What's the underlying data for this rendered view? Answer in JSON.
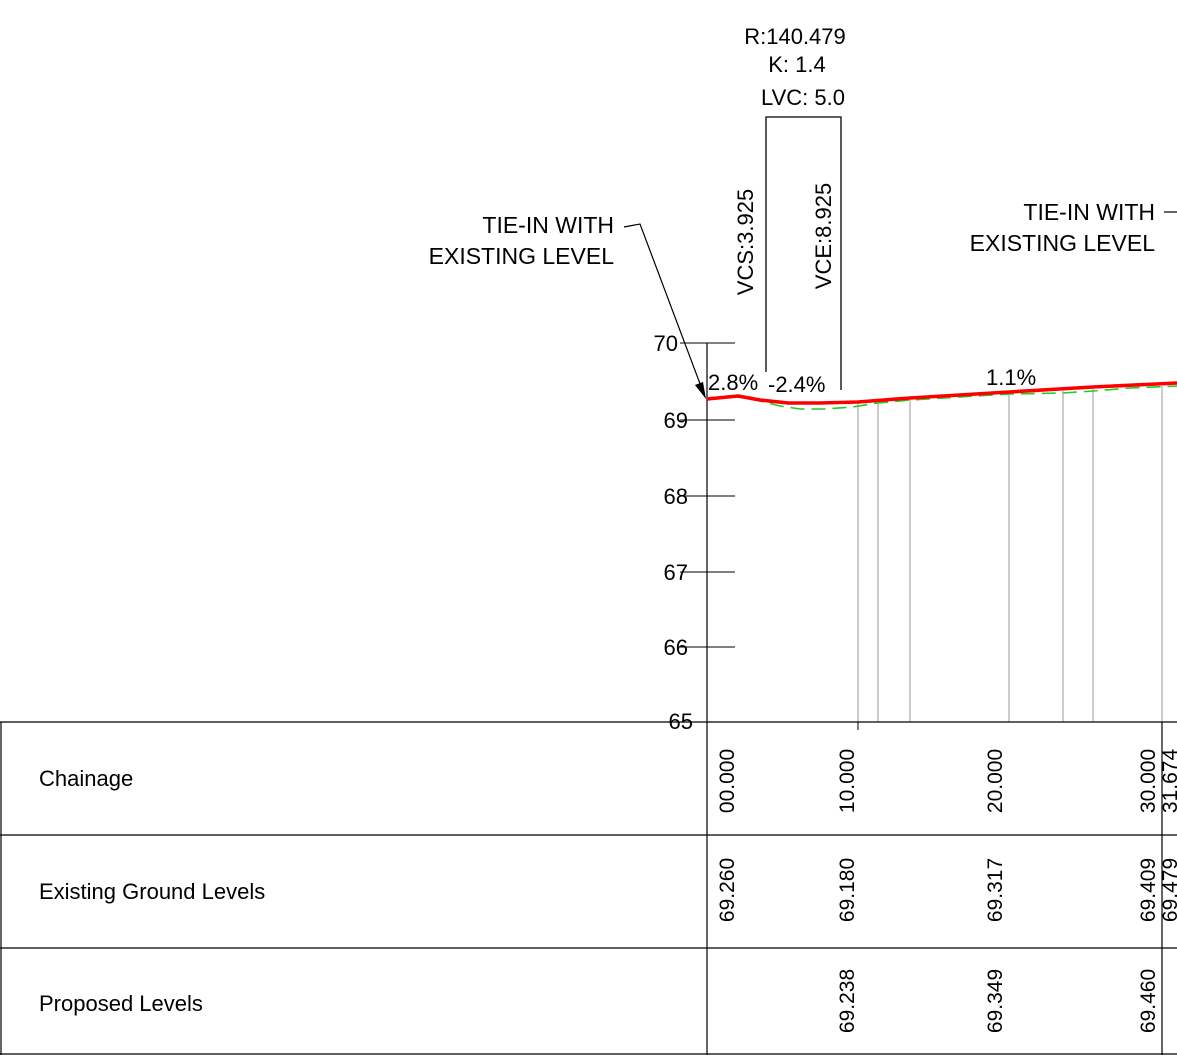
{
  "curve_info": {
    "radius": "R:140.479",
    "k_value": "K: 1.4",
    "lvc": "LVC: 5.0",
    "vcs": "VCS:3.925",
    "vce": "VCE:8.925"
  },
  "notes": {
    "tie_in_left": [
      "TIE-IN WITH",
      "EXISTING LEVEL"
    ],
    "tie_in_right": [
      "TIE-IN WITH",
      "EXISTING LEVEL"
    ]
  },
  "grades": {
    "g1": "2.8%",
    "g2": "-2.4%",
    "g3": "1.1%"
  },
  "level_axis": {
    "ticks": [
      "70",
      "69",
      "68",
      "67",
      "66",
      "65"
    ]
  },
  "table": {
    "rows": [
      {
        "label": "Chainage",
        "values": [
          "00.000",
          "10.000",
          "20.000",
          "30.000",
          "31.674"
        ]
      },
      {
        "label": "Existing Ground Levels",
        "values": [
          "69.260",
          "69.180",
          "69.317",
          "69.409",
          "69.479"
        ]
      },
      {
        "label": "Proposed Levels",
        "values": [
          "69.238",
          "69.349",
          "69.460"
        ]
      }
    ]
  },
  "colors": {
    "proposed_line": "#ff0000",
    "existing_line": "#22cc22",
    "linework": "#000000",
    "gridline": "#9a9a9a"
  }
}
